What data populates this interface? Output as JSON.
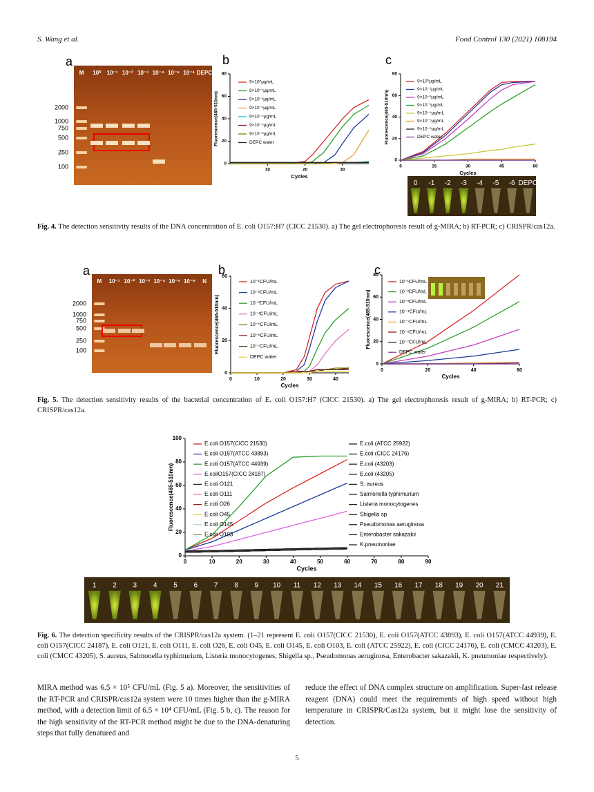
{
  "header": {
    "authors": "S. Wang et al.",
    "journal": "Food Control 130 (2021) 108194"
  },
  "figures": {
    "fig4": {
      "gel": {
        "label": "a",
        "lanes": [
          "M",
          "10⁰",
          "10⁻¹",
          "10⁻²",
          "10⁻³",
          "10⁻⁴",
          "10⁻⁵",
          "10⁻⁶",
          "DEPC"
        ],
        "ladder": [
          "2000",
          "1000",
          "750",
          "500",
          "250",
          "100"
        ]
      },
      "tubes": [
        "0",
        "-1",
        "-2",
        "-3",
        "-4",
        "-5",
        "-6",
        "DEPC"
      ],
      "caption": {
        "label": "Fig. 4.",
        "text": "The detection sensitivity results of the DNA concentration of E. coli O157:H7 (CICC 21530). a) The gel electrophoresis result of g-MIRA; b) RT-PCR; c) CRISPR/cas12a."
      }
    },
    "fig5": {
      "gel": {
        "label": "a",
        "lanes": [
          "M",
          "10⁻¹",
          "10⁻²",
          "10⁻³",
          "10⁻⁴",
          "10⁻⁵",
          "10⁻⁶",
          "N"
        ],
        "ladder": [
          "2000",
          "1000",
          "750",
          "500",
          "250",
          "100"
        ]
      },
      "caption": {
        "label": "Fig. 5.",
        "text": "The detection sensitivity results of the bacterial concentration of E. coli O157:H7 (CICC 21530). a) The gel electrophoresis result of g-MIRA; b) RT-PCR; c) CRISPR/cas12a."
      }
    },
    "fig6": {
      "tubes": [
        "1",
        "2",
        "3",
        "4",
        "5",
        "6",
        "7",
        "8",
        "9",
        "10",
        "11",
        "12",
        "13",
        "14",
        "15",
        "16",
        "17",
        "18",
        "19",
        "20",
        "21"
      ],
      "caption": {
        "label": "Fig. 6.",
        "text": "The detection specificity results of the CRISPR/cas12a system. (1–21 represent E. coli O157(CICC 21530), E. coli O157(ATCC 43893), E. coli O157(ATCC 44939), E. coli O157(CICC 24187), E. coli O121, E. coli O111, E. coli O26, E. coli O45, E. coli O145, E. coli O103, E. coli (ATCC 25922), E. coli (CICC 24176), E. coli (CMCC 43203), E. coli (CMCC 43205), S. aureus, Salmonella typhimurium, Listeria monocytogenes, Shigella sp., Pseudomonas aeruginosa, Enterobacter sakazakii, K. pneumoniae respectively)."
      }
    }
  },
  "chart_data": [
    {
      "type": "line",
      "label": "b",
      "xlabel": "Cycles",
      "ylabel": "Fluorescence(465-510nm)",
      "x": [
        0,
        5,
        10,
        15,
        20,
        22,
        25,
        28,
        30,
        33,
        37
      ],
      "xlim": [
        0,
        37
      ],
      "xticks": [
        10,
        20,
        30
      ],
      "ylim": [
        0,
        80
      ],
      "yticks": [
        0,
        20,
        40,
        60,
        80
      ],
      "series": [
        {
          "name": "9×10⁰μg/mL",
          "color": "#d62728",
          "values": [
            0,
            0,
            0,
            0,
            2,
            8,
            20,
            32,
            40,
            50,
            57
          ]
        },
        {
          "name": "9×10⁻¹μg/mL",
          "color": "#2ca02c",
          "values": [
            0,
            0,
            0,
            0,
            0,
            2,
            10,
            24,
            33,
            44,
            52
          ]
        },
        {
          "name": "9×10⁻²μg/mL",
          "color": "#1f3a9e",
          "values": [
            0,
            0,
            0,
            0,
            0,
            0,
            1,
            8,
            18,
            32,
            44
          ]
        },
        {
          "name": "9×10⁻³μg/mL",
          "color": "#e8a040",
          "values": [
            0,
            0,
            0,
            0,
            0,
            0,
            0,
            0,
            1,
            8,
            30
          ]
        },
        {
          "name": "9×10⁻⁴μg/mL",
          "color": "#17becf",
          "values": [
            1,
            1,
            1,
            1,
            1,
            1,
            1,
            1,
            1,
            1,
            2
          ]
        },
        {
          "name": "9×10⁻⁵μg/mL",
          "color": "#8b1a1a",
          "values": [
            1,
            1,
            1,
            1,
            1,
            1,
            1,
            1,
            1,
            1,
            1
          ]
        },
        {
          "name": "9×10⁻⁶μg/mL",
          "color": "#808000",
          "values": [
            0,
            0,
            0,
            0,
            0,
            0,
            0,
            1,
            1,
            1,
            1
          ]
        },
        {
          "name": "DEPC water",
          "color": "#222222",
          "values": [
            1,
            1,
            1,
            1,
            1,
            1,
            1,
            1,
            1,
            1,
            1
          ]
        }
      ]
    },
    {
      "type": "line",
      "label": "c",
      "xlabel": "Cycles",
      "ylabel": "Fluorescence(465-510nm)",
      "x": [
        0,
        10,
        20,
        30,
        40,
        45,
        50,
        60
      ],
      "xlim": [
        0,
        60
      ],
      "xticks": [
        0,
        15,
        30,
        45,
        60
      ],
      "ylim": [
        0,
        80
      ],
      "yticks": [
        0,
        20,
        40,
        60,
        80
      ],
      "series": [
        {
          "name": "9×10⁰μg/mL",
          "color": "#d62728",
          "values": [
            0,
            8,
            25,
            45,
            65,
            72,
            73,
            73
          ]
        },
        {
          "name": "9×10⁻¹μg/mL",
          "color": "#1f3a9e",
          "values": [
            0,
            7,
            23,
            43,
            63,
            70,
            72,
            73
          ]
        },
        {
          "name": "9×10⁻²μg/mL",
          "color": "#c040c0",
          "values": [
            0,
            6,
            20,
            38,
            57,
            65,
            70,
            73
          ]
        },
        {
          "name": "9×10⁻³μg/mL",
          "color": "#2ca02c",
          "values": [
            0,
            4,
            15,
            30,
            45,
            52,
            58,
            70
          ]
        },
        {
          "name": "9×10⁻⁴μg/mL",
          "color": "#c8c83a",
          "values": [
            0,
            2,
            4,
            6,
            9,
            10,
            12,
            15
          ]
        },
        {
          "name": "9×10⁻⁵μg/mL",
          "color": "#e8a040",
          "values": [
            0,
            0,
            0,
            1,
            1,
            1,
            1,
            1
          ]
        },
        {
          "name": "9×10⁻⁶μg/mL",
          "color": "#222222",
          "values": [
            0,
            0,
            0,
            0,
            0,
            0,
            0,
            0
          ]
        },
        {
          "name": "DEPC water",
          "color": "#7b3f9e",
          "values": [
            0,
            0,
            0,
            0,
            0,
            0,
            0,
            0
          ]
        }
      ]
    },
    {
      "type": "line",
      "label": "b",
      "xlabel": "Cycles",
      "ylabel": "Fluorescence(465-510nm)",
      "x": [
        0,
        10,
        20,
        25,
        28,
        30,
        33,
        36,
        40,
        45
      ],
      "xlim": [
        0,
        45
      ],
      "xticks": [
        0,
        10,
        20,
        30,
        40
      ],
      "ylim": [
        0,
        60
      ],
      "yticks": [
        0,
        20,
        40,
        60
      ],
      "series": [
        {
          "name": "10⁻¹CFU/mL",
          "color": "#d62728",
          "values": [
            0,
            0,
            0,
            2,
            10,
            22,
            40,
            50,
            55,
            57
          ]
        },
        {
          "name": "10⁻²CFU/mL",
          "color": "#1f3a9e",
          "values": [
            0,
            0,
            0,
            1,
            5,
            15,
            32,
            45,
            53,
            57
          ]
        },
        {
          "name": "10⁻³CFU/mL",
          "color": "#2ca02c",
          "values": [
            0,
            0,
            0,
            0,
            1,
            4,
            15,
            25,
            33,
            40
          ]
        },
        {
          "name": "10⁻⁴CFU/mL",
          "color": "#e377c2",
          "values": [
            0,
            0,
            0,
            0,
            0,
            1,
            5,
            12,
            20,
            27
          ]
        },
        {
          "name": "10⁻⁵CFU/mL",
          "color": "#808000",
          "values": [
            0,
            0,
            0,
            0,
            1,
            1,
            2,
            2,
            3,
            3
          ]
        },
        {
          "name": "10⁻⁶CFU/mL",
          "color": "#8b1a1a",
          "values": [
            0,
            0,
            0,
            1,
            1,
            1,
            2,
            2,
            2,
            3
          ]
        },
        {
          "name": "10⁻⁷CFU/mL",
          "color": "#5a3a1a",
          "values": [
            0,
            0,
            0,
            0,
            1,
            1,
            1,
            2,
            2,
            2
          ]
        },
        {
          "name": "DEPC water",
          "color": "#e8d040",
          "values": [
            0,
            0,
            0,
            0,
            0,
            0,
            1,
            1,
            1,
            1
          ]
        }
      ]
    },
    {
      "type": "line",
      "label": "c",
      "xlabel": "Cycles",
      "ylabel": "Fluorescence(465-510nm)",
      "x": [
        0,
        20,
        40,
        60
      ],
      "xlim": [
        0,
        60
      ],
      "xticks": [
        0,
        20,
        40,
        60
      ],
      "ylim": [
        0,
        80
      ],
      "yticks": [
        0,
        20,
        40,
        60,
        80
      ],
      "series": [
        {
          "name": "10⁻¹CFU/mL",
          "color": "#d62728",
          "values": [
            0,
            20,
            48,
            80
          ]
        },
        {
          "name": "10⁻²CFU/mL",
          "color": "#2ca02c",
          "values": [
            0,
            14,
            33,
            56
          ]
        },
        {
          "name": "10⁻³CFU/mL",
          "color": "#c040c0",
          "values": [
            0,
            7,
            17,
            31
          ]
        },
        {
          "name": "10⁻⁴CFU/mL",
          "color": "#1f3a9e",
          "values": [
            0,
            3,
            7,
            13
          ]
        },
        {
          "name": "10⁻⁵CFU/mL",
          "color": "#e8a040",
          "values": [
            0,
            0,
            1,
            1
          ]
        },
        {
          "name": "10⁻⁶CFU/mL",
          "color": "#8b1a1a",
          "values": [
            0,
            0,
            0,
            1
          ]
        },
        {
          "name": "10⁻⁷CFU/mL",
          "color": "#222222",
          "values": [
            0,
            0,
            0,
            0
          ]
        },
        {
          "name": "DEPC water",
          "color": "#7b3f9e",
          "values": [
            0,
            0,
            0,
            0
          ]
        }
      ]
    },
    {
      "type": "line",
      "xlabel": "Cycles",
      "ylabel": "Fluorescence(465-510nm)",
      "x": [
        0,
        10,
        20,
        30,
        40,
        50,
        60
      ],
      "xlim": [
        0,
        90
      ],
      "xticks": [
        0,
        10,
        20,
        30,
        40,
        50,
        60,
        70,
        80,
        90
      ],
      "ylim": [
        0,
        100
      ],
      "yticks": [
        0,
        20,
        40,
        60,
        80,
        100
      ],
      "series": [
        {
          "name": "E.coli O157(CICC 21530)",
          "color": "#d62728",
          "values": [
            5,
            15,
            30,
            45,
            58,
            70,
            82
          ]
        },
        {
          "name": "E.coli O157(ATCC 43893)",
          "color": "#1f3a9e",
          "values": [
            5,
            12,
            22,
            32,
            42,
            52,
            62
          ]
        },
        {
          "name": "E.coli O157(ATCC 44939)",
          "color": "#2ca02c",
          "values": [
            5,
            18,
            42,
            68,
            84,
            85,
            85
          ]
        },
        {
          "name": "E.coliO157(CICC 24187)",
          "color": "#e060e0",
          "values": [
            4,
            8,
            14,
            20,
            26,
            32,
            38
          ]
        },
        {
          "name": "E.coli O121",
          "color": "#222222",
          "values": [
            3,
            3.5,
            4,
            4.5,
            5,
            5.5,
            6
          ]
        },
        {
          "name": "E.coli O111",
          "color": "#f08080",
          "values": [
            3,
            3.5,
            4,
            4.5,
            5,
            5.5,
            6
          ]
        },
        {
          "name": "E.coli O26",
          "color": "#8b1a1a",
          "values": [
            3,
            3.5,
            4,
            4.5,
            5,
            5.5,
            6
          ]
        },
        {
          "name": "E.coli O45",
          "color": "#e8d040",
          "values": [
            3,
            3.5,
            4,
            4.5,
            5,
            5.5,
            6
          ]
        },
        {
          "name": "E.coli O145",
          "color": "#b0e0b0",
          "values": [
            3,
            3.5,
            4,
            4.5,
            5,
            5.5,
            6
          ]
        },
        {
          "name": "E.coli O103",
          "color": "#8a8a40",
          "values": [
            3,
            3.5,
            4,
            4.5,
            5,
            5.5,
            6
          ]
        },
        {
          "name": "E.coli (ATCC 25922)",
          "color": "#222222",
          "values": [
            4,
            4.5,
            5,
            5.5,
            6,
            6.5,
            7
          ]
        },
        {
          "name": "E.coli (CICC 24176)",
          "color": "#222222",
          "values": [
            4,
            4.5,
            5,
            5.5,
            6,
            6.5,
            7
          ]
        },
        {
          "name": "E.coli (43203)",
          "color": "#222222",
          "values": [
            4,
            4.5,
            5,
            5.5,
            6,
            6.5,
            7
          ]
        },
        {
          "name": "E.coli (43205)",
          "color": "#222222",
          "values": [
            4,
            4.5,
            5,
            5.5,
            6,
            6.5,
            7
          ]
        },
        {
          "name": "S. aureus",
          "color": "#222222",
          "values": [
            3,
            3.5,
            4,
            4.5,
            5,
            5.5,
            6
          ]
        },
        {
          "name": "Salmonella typhimurium",
          "color": "#222222",
          "values": [
            3,
            3.5,
            4,
            4.5,
            5,
            5.5,
            6
          ]
        },
        {
          "name": "Listeria monocytogenes",
          "color": "#222222",
          "values": [
            3,
            3.5,
            4,
            4.5,
            5,
            5.5,
            6
          ]
        },
        {
          "name": "Shigella sp",
          "color": "#222222",
          "values": [
            3,
            3.5,
            4,
            4.5,
            5,
            5.5,
            6
          ]
        },
        {
          "name": "Pseudomonas aeruginosa",
          "color": "#222222",
          "values": [
            3,
            3.5,
            4,
            4.5,
            5,
            5.5,
            6
          ]
        },
        {
          "name": "Enterobacter sakazakii",
          "color": "#222222",
          "values": [
            3,
            3.5,
            4,
            4.5,
            5,
            5.5,
            6
          ]
        },
        {
          "name": "K.pneumoniae",
          "color": "#222222",
          "values": [
            3,
            3.5,
            4,
            4.5,
            5,
            5.5,
            6
          ]
        }
      ]
    }
  ],
  "body": {
    "left": "MIRA method was 6.5 × 10⁵ CFU/mL (Fig. 5 a). Moreover, the sensitivities of the RT-PCR and CRISPR/cas12a system were 10 times higher than the g-MIRA method, with a detection limit of 6.5 × 10⁴ CFU/mL (Fig. 5 b, c). The reason for the high sensitivity of the RT-PCR method might be due to the DNA-denaturing steps that fully denatured and",
    "right": "reduce the effect of DNA complex structure on amplification. Super-fast release reagent (DNA) could meet the requirements of high speed without high temperature in CRISPR/Cas12a system, but it might lose the sensitivity of detection."
  },
  "page_number": "5"
}
